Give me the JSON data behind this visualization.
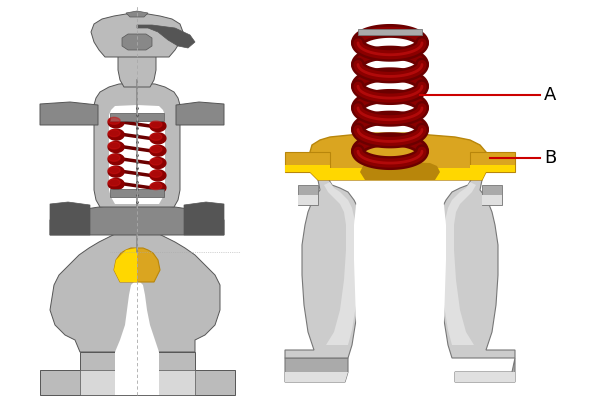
{
  "bg_color": "#ffffff",
  "sp_dk": "#6B0000",
  "sp_md": "#8B0000",
  "sp_lt": "#CC1111",
  "gold_dk": "#B8860B",
  "gold_md": "#DAA520",
  "gold_lt": "#FFD700",
  "gray_dk": "#555555",
  "gray_md": "#888888",
  "gray_lt": "#BBBBBB",
  "gray_vlt": "#D8D8D8",
  "silver_dk": "#777777",
  "silver_md": "#AAAAAA",
  "silver_lt": "#CCCCCC",
  "silver_vlt": "#E0E0E0",
  "white": "#FFFFFF",
  "red_line": "#CC0000",
  "label_A": "A",
  "label_B": "B",
  "label_fontsize": 13
}
